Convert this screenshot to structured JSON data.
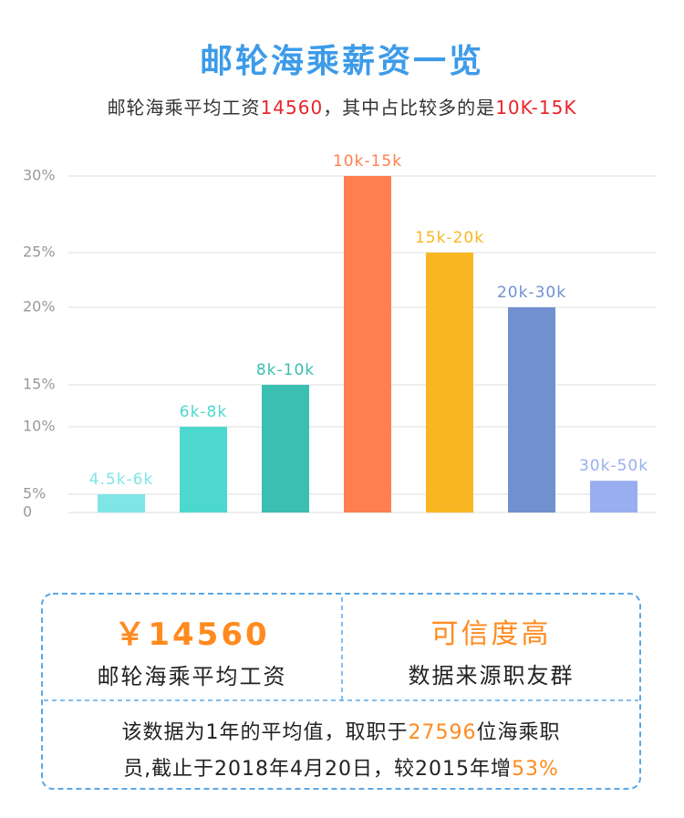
{
  "chart_data": {
    "type": "bar",
    "title": "邮轮海乘薪资一览",
    "subtitle": [
      "邮轮海乘平均工资",
      "14560",
      "，其中占比较多的是",
      "10K-15K"
    ],
    "categories": [
      "4.5k-6k",
      "6k-8k",
      "8k-10k",
      "10k-15k",
      "15k-20k",
      "20k-30k",
      "30k-50k"
    ],
    "values": [
      5,
      10,
      15,
      30,
      25,
      20,
      6
    ],
    "colors": [
      "#7fe5e6",
      "#4dd8cf",
      "#3abfb2",
      "#ff7f50",
      "#f8b722",
      "#7090d0",
      "#98aef0"
    ],
    "ylim": [
      0,
      30
    ],
    "yticks": [
      0,
      {
        "value": 5,
        "label": "5%"
      },
      {
        "value": 10,
        "label": "10%"
      },
      {
        "value": 15,
        "label": "15%"
      },
      {
        "value": 20,
        "label": "20%"
      },
      {
        "value": 25,
        "label": "25%"
      },
      {
        "value": 30,
        "label": "30%"
      }
    ],
    "grid": true
  },
  "summary": {
    "left": {
      "value": "￥14560",
      "label": "邮轮海乘平均工资"
    },
    "right": {
      "value": "可信度高",
      "label": "数据来源职友群"
    },
    "note": [
      [
        "该数据为1年的平均值，取职于",
        "27596",
        "位海乘职"
      ],
      [
        "员,截止于2018年4月20日，较2015年增",
        "53%"
      ]
    ]
  }
}
